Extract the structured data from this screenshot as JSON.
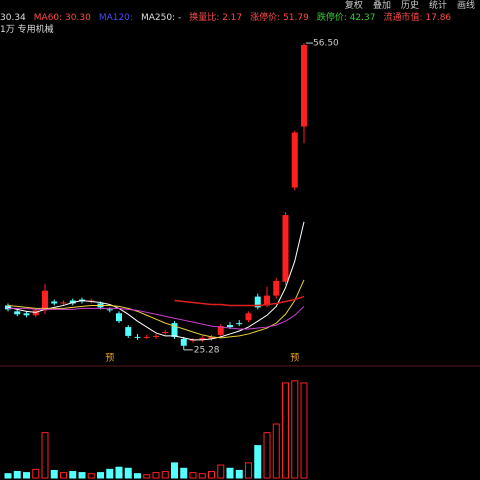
{
  "toolbar": {
    "buttons": [
      "复权",
      "叠加",
      "历史",
      "统计",
      "画线"
    ]
  },
  "header": {
    "items": [
      {
        "text": "30.34",
        "color": "#dddddd"
      },
      {
        "text": "MA60: 30.30",
        "color": "#ff4a4a"
      },
      {
        "text": "MA120:",
        "color": "#4a4aff"
      },
      {
        "text": "MA250: -",
        "color": "#dddddd"
      },
      {
        "text": "换量比: 2.17",
        "color": "#ff4a4a"
      },
      {
        "text": "涨停价: 51.79",
        "color": "#ff4a4a"
      },
      {
        "text": "跌停价: 42.37",
        "color": "#33cc33"
      },
      {
        "text": "流通市值: 17.86",
        "color": "#ff4a4a"
      }
    ]
  },
  "chart_data": {
    "type": "candlestick",
    "subtitle": "1万 专用机械",
    "ylim": [
      23.74,
      58.03
    ],
    "up_color": "#ff2020",
    "down_color": "#54ffff",
    "open": [
      29.8,
      29.2,
      29.0,
      28.8,
      29.3,
      30.2,
      30.0,
      30.3,
      30.4,
      30.2,
      30.0,
      29.4,
      29.0,
      27.6,
      26.6,
      26.6,
      26.6,
      27.0,
      28.0,
      26.4,
      26.2,
      26.3,
      26.4,
      26.8,
      27.8,
      28.0,
      28.3,
      30.7,
      29.8,
      30.8,
      32.2,
      41.8,
      48.0
    ],
    "high": [
      30.0,
      29.4,
      29.2,
      29.5,
      32.0,
      30.4,
      30.3,
      30.5,
      30.6,
      30.5,
      30.2,
      29.6,
      29.2,
      27.8,
      26.9,
      26.8,
      26.9,
      27.3,
      28.2,
      26.6,
      26.5,
      26.7,
      26.8,
      27.9,
      28.1,
      28.3,
      29.2,
      31.0,
      31.7,
      32.6,
      39.3,
      47.6,
      56.5
    ],
    "low": [
      29.2,
      28.7,
      28.6,
      28.6,
      28.9,
      29.8,
      29.8,
      29.8,
      30.0,
      30.0,
      29.4,
      29.1,
      28.0,
      26.5,
      26.3,
      26.4,
      26.4,
      26.8,
      26.4,
      25.28,
      26.0,
      26.1,
      26.2,
      26.6,
      27.4,
      27.7,
      28.1,
      29.4,
      29.6,
      30.5,
      31.9,
      41.5,
      46.3
    ],
    "close": [
      29.4,
      28.9,
      28.8,
      29.3,
      31.3,
      30.0,
      30.1,
      30.0,
      30.2,
      30.3,
      29.6,
      29.3,
      28.2,
      26.7,
      26.5,
      26.6,
      26.7,
      27.1,
      26.6,
      25.7,
      26.3,
      26.5,
      26.6,
      27.7,
      27.6,
      27.9,
      29.0,
      29.6,
      30.8,
      32.3,
      39.0,
      47.4,
      56.3
    ],
    "series": [
      {
        "color": "#ffffff",
        "values": [
          29.6,
          29.4,
          29.2,
          29.1,
          29.4,
          29.6,
          29.8,
          30.1,
          30.3,
          30.2,
          30.1,
          29.9,
          29.5,
          28.9,
          28.2,
          27.6,
          27.0,
          26.7,
          26.7,
          26.5,
          26.3,
          26.3,
          26.4,
          26.6,
          26.9,
          27.2,
          27.6,
          28.2,
          28.8,
          29.7,
          31.6,
          34.3,
          38.3
        ]
      },
      {
        "color": "#e8d03a",
        "values": [
          29.8,
          29.7,
          29.6,
          29.5,
          29.5,
          29.5,
          29.5,
          29.6,
          29.7,
          29.8,
          29.8,
          29.8,
          29.7,
          29.5,
          29.2,
          28.8,
          28.4,
          28.0,
          27.7,
          27.4,
          27.1,
          26.8,
          26.6,
          26.5,
          26.6,
          26.7,
          26.9,
          27.2,
          27.5,
          28.0,
          28.9,
          30.3,
          32.4
        ]
      },
      {
        "color": "#d040d0",
        "values": [
          29.5,
          29.5,
          29.5,
          29.4,
          29.4,
          29.4,
          29.4,
          29.4,
          29.5,
          29.5,
          29.5,
          29.5,
          29.5,
          29.4,
          29.3,
          29.1,
          28.9,
          28.7,
          28.5,
          28.3,
          28.1,
          27.9,
          27.7,
          27.6,
          27.5,
          27.4,
          27.4,
          27.5,
          27.6,
          27.8,
          28.2,
          28.8,
          29.7
        ]
      },
      {
        "color": "#e02020",
        "values": [
          null,
          null,
          null,
          null,
          null,
          null,
          null,
          null,
          null,
          null,
          null,
          null,
          null,
          null,
          null,
          null,
          null,
          null,
          30.3,
          30.2,
          30.1,
          30.0,
          29.9,
          29.9,
          29.8,
          29.8,
          29.8,
          29.8,
          29.9,
          30.0,
          30.2,
          30.4,
          30.7
        ]
      }
    ],
    "max_label": {
      "value": 56.5,
      "label": "56.50"
    },
    "min_label": {
      "value": 25.28,
      "label": "25.28"
    },
    "markers": [
      {
        "index": 11,
        "label": "预"
      },
      {
        "index": 31,
        "label": "预"
      }
    ],
    "volume": {
      "ylim": [
        0,
        100
      ],
      "values": [
        4,
        6,
        5,
        8,
        42,
        7,
        5,
        6,
        5,
        4,
        5,
        8,
        10,
        9,
        4,
        3,
        5,
        6,
        14,
        9,
        5,
        4,
        6,
        12,
        9,
        7,
        14,
        30,
        42,
        50,
        88,
        90,
        88
      ]
    }
  }
}
